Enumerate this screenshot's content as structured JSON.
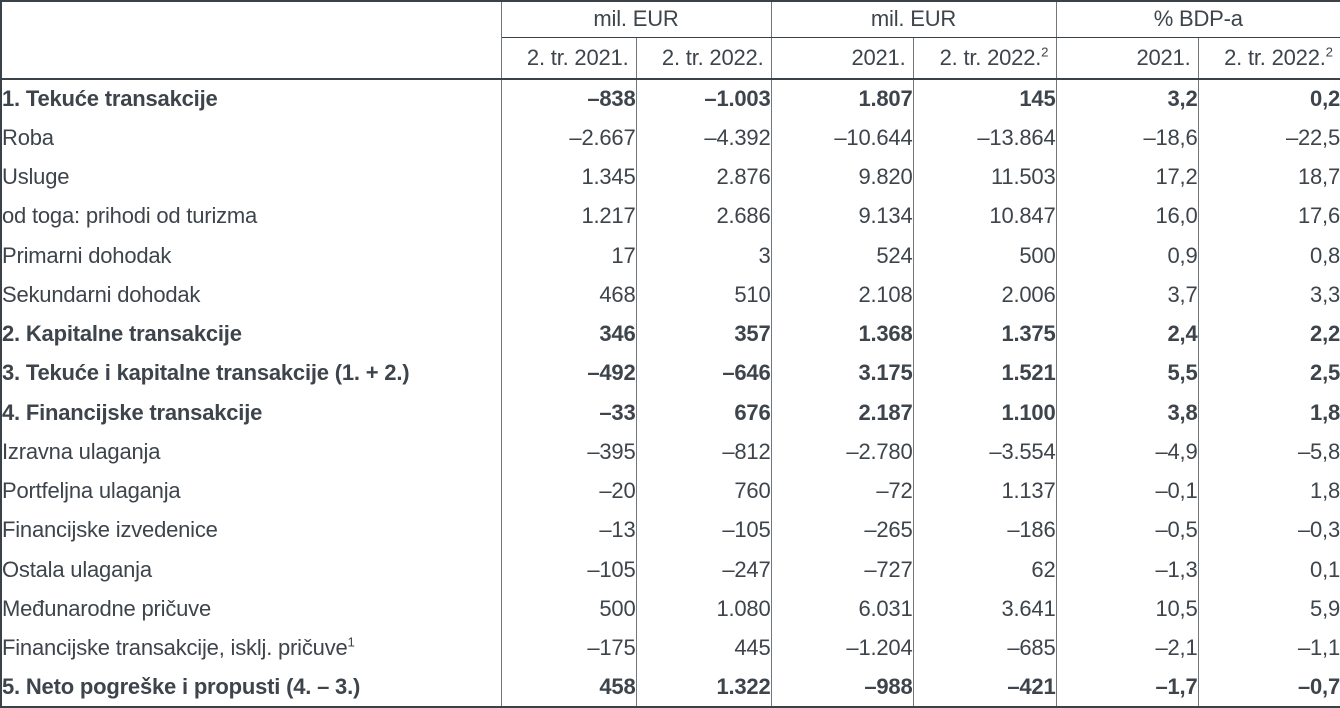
{
  "colors": {
    "background": "#ffffff",
    "text": "#3d444b",
    "border_dark": "#3a4147",
    "border_light": "#70777d"
  },
  "chart_data": {
    "type": "table",
    "title": "",
    "header": {
      "groups": [
        {
          "label": "mil. EUR"
        },
        {
          "label": "mil. EUR"
        },
        {
          "label": "% BDP-a"
        }
      ],
      "subcolumns": [
        {
          "text": "2. tr. 2021.",
          "sup": ""
        },
        {
          "text": "2. tr. 2022.",
          "sup": ""
        },
        {
          "text": "2021.",
          "sup": ""
        },
        {
          "text": "2. tr. 2022.",
          "sup": "2"
        },
        {
          "text": "2021.",
          "sup": ""
        },
        {
          "text": "2. tr. 2022.",
          "sup": "2"
        }
      ]
    },
    "rows": [
      {
        "label": "1. Tekuće transakcije",
        "sup": "",
        "bold": true,
        "indent": 0,
        "values": [
          "–838",
          "–1.003",
          "1.807",
          "145",
          "3,2",
          "0,2"
        ]
      },
      {
        "label": "Roba",
        "sup": "",
        "bold": false,
        "indent": 1,
        "values": [
          "–2.667",
          "–4.392",
          "–10.644",
          "–13.864",
          "–18,6",
          "–22,5"
        ]
      },
      {
        "label": "Usluge",
        "sup": "",
        "bold": false,
        "indent": 1,
        "values": [
          "1.345",
          "2.876",
          "9.820",
          "11.503",
          "17,2",
          "18,7"
        ]
      },
      {
        "label": "od toga: prihodi od turizma",
        "sup": "",
        "bold": false,
        "indent": 2,
        "values": [
          "1.217",
          "2.686",
          "9.134",
          "10.847",
          "16,0",
          "17,6"
        ]
      },
      {
        "label": "Primarni dohodak",
        "sup": "",
        "bold": false,
        "indent": 1,
        "values": [
          "17",
          "3",
          "524",
          "500",
          "0,9",
          "0,8"
        ]
      },
      {
        "label": "Sekundarni dohodak",
        "sup": "",
        "bold": false,
        "indent": 1,
        "values": [
          "468",
          "510",
          "2.108",
          "2.006",
          "3,7",
          "3,3"
        ]
      },
      {
        "label": "2. Kapitalne transakcije",
        "sup": "",
        "bold": true,
        "indent": 0,
        "values": [
          "346",
          "357",
          "1.368",
          "1.375",
          "2,4",
          "2,2"
        ]
      },
      {
        "label": "3. Tekuće i kapitalne transakcije (1. + 2.)",
        "sup": "",
        "bold": true,
        "indent": 0,
        "values": [
          "–492",
          "–646",
          "3.175",
          "1.521",
          "5,5",
          "2,5"
        ]
      },
      {
        "label": "4. Financijske transakcije",
        "sup": "",
        "bold": true,
        "indent": 0,
        "values": [
          "–33",
          "676",
          "2.187",
          "1.100",
          "3,8",
          "1,8"
        ]
      },
      {
        "label": "Izravna ulaganja",
        "sup": "",
        "bold": false,
        "indent": 1,
        "values": [
          "–395",
          "–812",
          "–2.780",
          "–3.554",
          "–4,9",
          "–5,8"
        ]
      },
      {
        "label": "Portfeljna ulaganja",
        "sup": "",
        "bold": false,
        "indent": 1,
        "values": [
          "–20",
          "760",
          "–72",
          "1.137",
          "–0,1",
          "1,8"
        ]
      },
      {
        "label": "Financijske izvedenice",
        "sup": "",
        "bold": false,
        "indent": 1,
        "values": [
          "–13",
          "–105",
          "–265",
          "–186",
          "–0,5",
          "–0,3"
        ]
      },
      {
        "label": "Ostala ulaganja",
        "sup": "",
        "bold": false,
        "indent": 1,
        "values": [
          "–105",
          "–247",
          "–727",
          "62",
          "–1,3",
          "0,1"
        ]
      },
      {
        "label": "Međunarodne pričuve",
        "sup": "",
        "bold": false,
        "indent": 1,
        "values": [
          "500",
          "1.080",
          "6.031",
          "3.641",
          "10,5",
          "5,9"
        ]
      },
      {
        "label": "Financijske transakcije, isklj. pričuve",
        "sup": "1",
        "bold": false,
        "indent": 3,
        "values": [
          "–175",
          "445",
          "–1.204",
          "–685",
          "–2,1",
          "–1,1"
        ]
      },
      {
        "label": "5. Neto pogreške i propusti (4. – 3.)",
        "sup": "",
        "bold": true,
        "indent": 0,
        "values": [
          "458",
          "1.322",
          "–988",
          "–421",
          "–1,7",
          "–0,7"
        ]
      }
    ]
  }
}
